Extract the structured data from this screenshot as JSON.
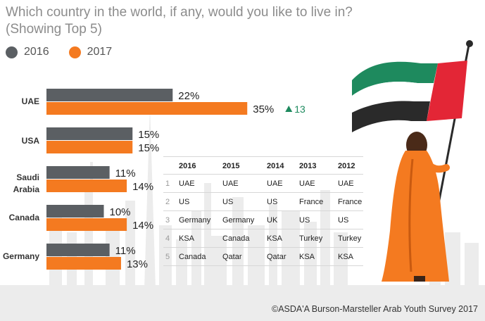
{
  "header": {
    "title_line1": "Which country in the world, if any, would you like to live in?",
    "title_line2": "(Showing Top 5)"
  },
  "legend": [
    {
      "label": "2016",
      "color": "#5b5f63"
    },
    {
      "label": "2017",
      "color": "#f47a20"
    }
  ],
  "chart_data": {
    "type": "bar",
    "orientation": "horizontal",
    "categories": [
      "UAE",
      "USA",
      "Saudi Arabia",
      "Canada",
      "Germany"
    ],
    "series": [
      {
        "name": "2016",
        "color": "#5b5f63",
        "values": [
          22,
          15,
          11,
          10,
          11
        ],
        "labels": [
          "22%",
          "15%",
          "11%",
          "10%",
          "11%"
        ]
      },
      {
        "name": "2017",
        "color": "#f47a20",
        "values": [
          35,
          15,
          14,
          14,
          13
        ],
        "labels": [
          "35%",
          "15%",
          "14%",
          "14%",
          "13%"
        ]
      }
    ],
    "annotations": [
      {
        "category": "UAE",
        "series": "2017",
        "text": "13",
        "symbol": "triangle-up",
        "color": "#1e8a5e"
      }
    ],
    "xlim": [
      0,
      40
    ]
  },
  "ranking_table": {
    "headers": [
      "2016",
      "2015",
      "2014",
      "2013",
      "2012"
    ],
    "rows": [
      {
        "rank": "1",
        "values": [
          "UAE",
          "UAE",
          "UAE",
          "UAE",
          "UAE"
        ]
      },
      {
        "rank": "2",
        "values": [
          "US",
          "US",
          "US",
          "France",
          "France"
        ]
      },
      {
        "rank": "3",
        "values": [
          "Germany",
          "Germany",
          "UK",
          "US",
          "US"
        ]
      },
      {
        "rank": "4",
        "values": [
          "KSA",
          "Canada",
          "KSA",
          "Turkey",
          "Turkey"
        ]
      },
      {
        "rank": "5",
        "values": [
          "Canada",
          "Qatar",
          "Qatar",
          "KSA",
          "KSA"
        ]
      }
    ]
  },
  "colors": {
    "bar_2016": "#5b5f63",
    "bar_2017": "#f47a20",
    "skyline": "#ececec",
    "flag_green": "#1e8a5e",
    "flag_white": "#ffffff",
    "flag_black": "#2a2a2a",
    "flag_red": "#e32636",
    "robe": "#f47a20",
    "delta_up": "#1e8a5e"
  },
  "footer": {
    "credit": "©ASDA'A Burson-Marsteller Arab Youth Survey 2017"
  }
}
